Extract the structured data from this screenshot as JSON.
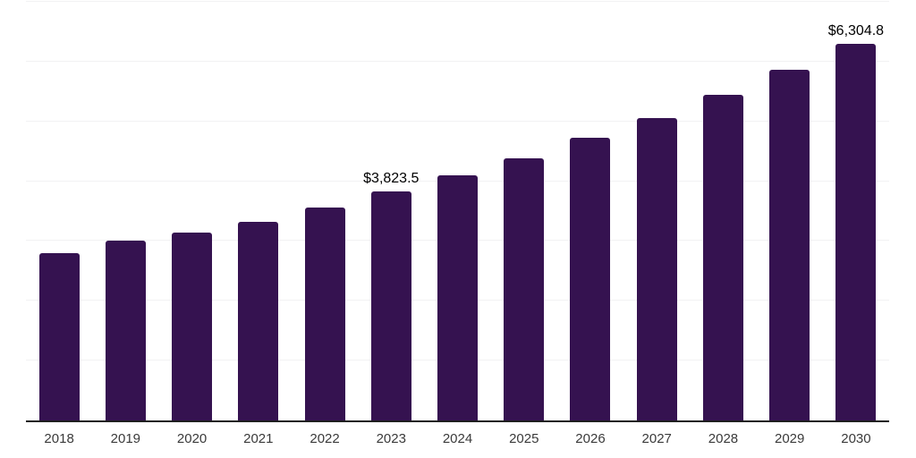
{
  "colors": {
    "background": "#ffffff",
    "bar": "#351250",
    "grid": "#f2f2f3",
    "axis": "#1f1f1f",
    "tick_text": "#3a3a3a",
    "data_label_text": "#000000"
  },
  "chart_data": {
    "type": "bar",
    "title": "",
    "xlabel": "",
    "ylabel": "",
    "categories": [
      "2018",
      "2019",
      "2020",
      "2021",
      "2022",
      "2023",
      "2024",
      "2025",
      "2026",
      "2027",
      "2028",
      "2029",
      "2030"
    ],
    "values": [
      2795,
      3005,
      3140,
      3320,
      3560,
      3823.5,
      4100,
      4390,
      4725,
      5050,
      5440,
      5865,
      6304.8
    ],
    "bar_labels": [
      "",
      "",
      "",
      "",
      "",
      "$3,823.5",
      "",
      "",
      "",
      "",
      "",
      "",
      "$6,304.8"
    ],
    "ylim": [
      0,
      7000
    ],
    "gridline_step": 1000,
    "grid": true,
    "legend": false
  }
}
